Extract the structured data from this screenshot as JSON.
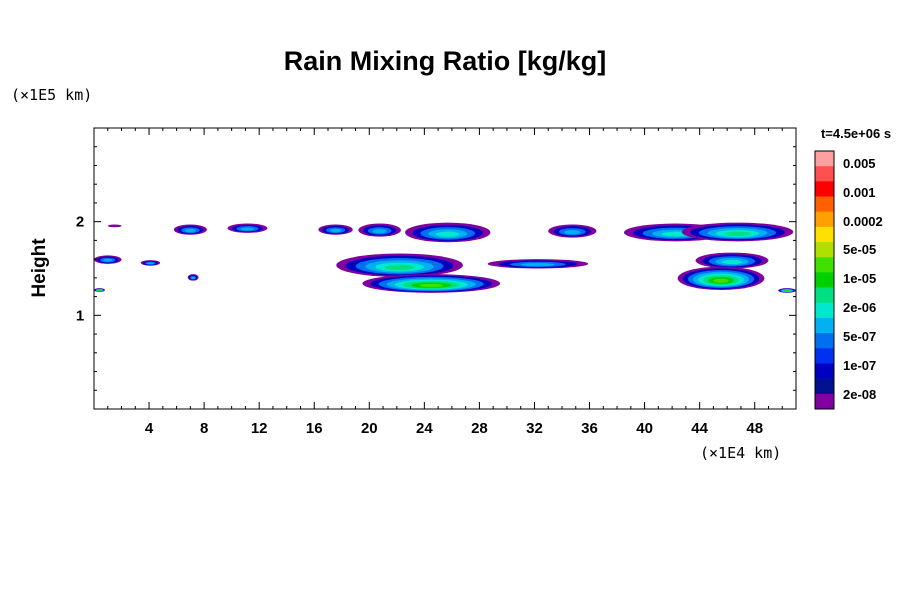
{
  "chart_data": {
    "type": "contour",
    "title": "Rain Mixing Ratio [kg/kg]",
    "xlabel": "",
    "ylabel": "Height",
    "x_unit": "(×1E4 km)",
    "y_unit": "(×1E5 km)",
    "time_label": "t=4.5e+06 s",
    "xlim": [
      0,
      51
    ],
    "ylim": [
      0,
      3
    ],
    "xticks": [
      4,
      8,
      12,
      16,
      20,
      24,
      28,
      32,
      36,
      40,
      44,
      48
    ],
    "yticks": [
      1,
      2
    ],
    "colorbar": {
      "labels": [
        "0.005",
        "0.001",
        "0.0002",
        "5e-05",
        "1e-05",
        "2e-06",
        "5e-07",
        "1e-07",
        "2e-08"
      ],
      "colors": [
        "#ffa0a0",
        "#ff5050",
        "#ff0000",
        "#ff6000",
        "#ffa000",
        "#ffe000",
        "#b0e000",
        "#40e000",
        "#00d000",
        "#00e080",
        "#00e8d0",
        "#00b0f0",
        "#0070f0",
        "#0030f0",
        "#0000c0",
        "#001090",
        "#8000a0"
      ]
    },
    "regions": [
      {
        "x": [
          1.0,
          2.0
        ],
        "y": [
          1.97,
          1.94
        ],
        "level": "2e-08"
      },
      {
        "x": [
          5.8,
          8.2
        ],
        "y": [
          1.97,
          1.86
        ],
        "level": "5e-07"
      },
      {
        "x": [
          9.7,
          12.6
        ],
        "y": [
          1.98,
          1.88
        ],
        "level": "5e-07"
      },
      {
        "x": [
          16.3,
          18.8
        ],
        "y": [
          1.97,
          1.86
        ],
        "level": "5e-07"
      },
      {
        "x": [
          19.2,
          22.3
        ],
        "y": [
          1.98,
          1.84
        ],
        "level": "5e-07"
      },
      {
        "x": [
          22.6,
          28.8
        ],
        "y": [
          1.99,
          1.78
        ],
        "level": "1e-06"
      },
      {
        "x": [
          33.0,
          36.5
        ],
        "y": [
          1.97,
          1.83
        ],
        "level": "5e-07"
      },
      {
        "x": [
          38.5,
          46.0
        ],
        "y": [
          1.98,
          1.79
        ],
        "level": "1e-06"
      },
      {
        "x": [
          42.7,
          50.8
        ],
        "y": [
          1.99,
          1.79
        ],
        "level": "2e-06"
      },
      {
        "x": [
          0.0,
          2.0
        ],
        "y": [
          1.64,
          1.55
        ],
        "level": "5e-07"
      },
      {
        "x": [
          3.4,
          4.8
        ],
        "y": [
          1.59,
          1.53
        ],
        "level": "5e-07"
      },
      {
        "x": [
          6.8,
          7.6
        ],
        "y": [
          1.44,
          1.37
        ],
        "level": "5e-07"
      },
      {
        "x": [
          17.6,
          26.8
        ],
        "y": [
          1.66,
          1.41
        ],
        "level": "2e-06"
      },
      {
        "x": [
          28.6,
          35.9
        ],
        "y": [
          1.6,
          1.5
        ],
        "level": "5e-07"
      },
      {
        "x": [
          19.5,
          29.5
        ],
        "y": [
          1.44,
          1.24
        ],
        "level": "1e-05"
      },
      {
        "x": [
          43.7,
          49.0
        ],
        "y": [
          1.67,
          1.5
        ],
        "level": "1e-06"
      },
      {
        "x": [
          42.4,
          48.7
        ],
        "y": [
          1.52,
          1.27
        ],
        "level": "1e-05"
      },
      {
        "x": [
          0.0,
          0.8
        ],
        "y": [
          1.29,
          1.25
        ],
        "level": "1e-05"
      },
      {
        "x": [
          49.7,
          51.0
        ],
        "y": [
          1.29,
          1.24
        ],
        "level": "1e-05"
      }
    ]
  }
}
